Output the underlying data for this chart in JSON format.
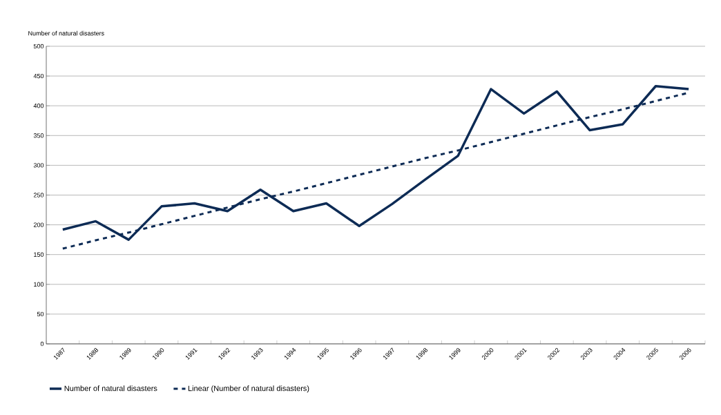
{
  "chart_data": {
    "type": "line",
    "ylabel": "Number of natural disasters",
    "categories": [
      "1987",
      "1988",
      "1989",
      "1990",
      "1991",
      "1992",
      "1993",
      "1994",
      "1995",
      "1996",
      "1997",
      "1998",
      "1999",
      "2000",
      "2001",
      "2002",
      "2003",
      "2004",
      "2005",
      "2006"
    ],
    "series": [
      {
        "name": "Number of natural disasters",
        "color": "#0d2b55",
        "line_style": "solid",
        "values": [
          192,
          206,
          175,
          231,
          236,
          223,
          259,
          223,
          236,
          198,
          235,
          276,
          316,
          428,
          387,
          424,
          359,
          369,
          433,
          428
        ]
      },
      {
        "name": "Linear (Number of natural disasters)",
        "color": "#0d2b55",
        "line_style": "dashed",
        "values": [
          160,
          174,
          187,
          201,
          215,
          229,
          243,
          256,
          270,
          284,
          298,
          312,
          325,
          339,
          353,
          367,
          381,
          394,
          408,
          422
        ]
      }
    ],
    "ylim": [
      0,
      500
    ],
    "yticks": [
      0,
      50,
      100,
      150,
      200,
      250,
      300,
      350,
      400,
      450,
      500
    ],
    "grid": "y",
    "legend": "bottom"
  }
}
